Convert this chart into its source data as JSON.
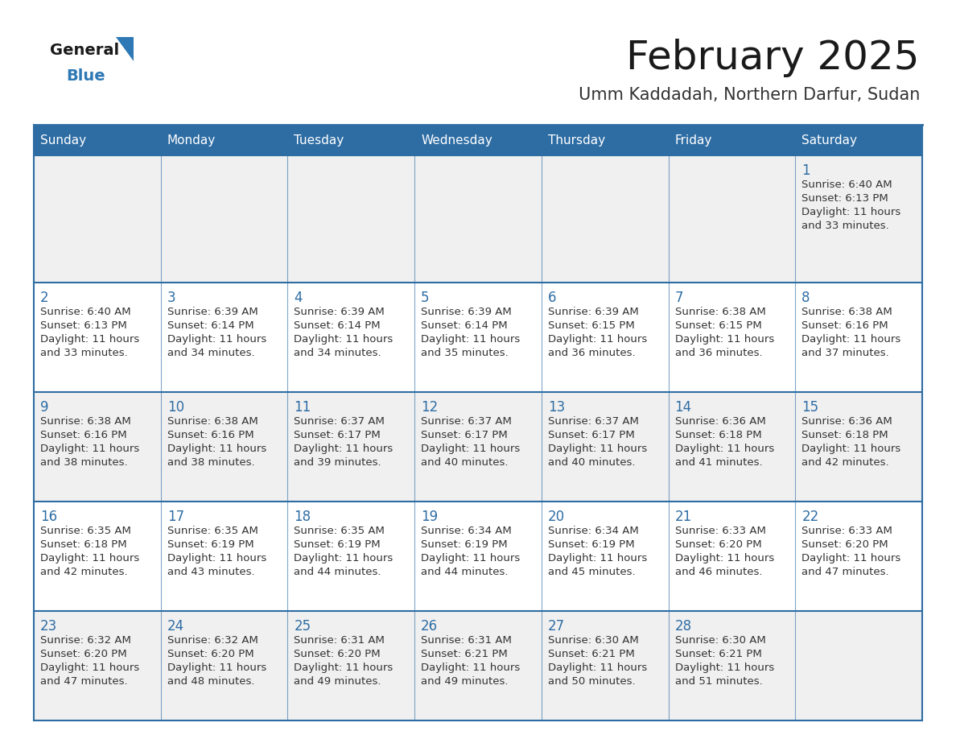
{
  "title": "February 2025",
  "subtitle": "Umm Kaddadah, Northern Darfur, Sudan",
  "days_of_week": [
    "Sunday",
    "Monday",
    "Tuesday",
    "Wednesday",
    "Thursday",
    "Friday",
    "Saturday"
  ],
  "header_bg": "#2E6DA4",
  "header_text": "#FFFFFF",
  "cell_bg_odd": "#F0F0F0",
  "cell_bg_even": "#FFFFFF",
  "cell_border": "#2E6DA4",
  "title_color": "#1a1a1a",
  "subtitle_color": "#333333",
  "day_num_color": "#2E6DA4",
  "cell_text_color": "#333333",
  "logo_general_color": "#1a1a1a",
  "logo_blue_color": "#2E79B5",
  "calendar_data": [
    [
      null,
      null,
      null,
      null,
      null,
      null,
      {
        "day": 1,
        "sunrise": "6:40 AM",
        "sunset": "6:13 PM",
        "daylight_hrs": 11,
        "daylight_min": "33 minutes."
      }
    ],
    [
      {
        "day": 2,
        "sunrise": "6:40 AM",
        "sunset": "6:13 PM",
        "daylight_hrs": 11,
        "daylight_min": "33 minutes."
      },
      {
        "day": 3,
        "sunrise": "6:39 AM",
        "sunset": "6:14 PM",
        "daylight_hrs": 11,
        "daylight_min": "34 minutes."
      },
      {
        "day": 4,
        "sunrise": "6:39 AM",
        "sunset": "6:14 PM",
        "daylight_hrs": 11,
        "daylight_min": "34 minutes."
      },
      {
        "day": 5,
        "sunrise": "6:39 AM",
        "sunset": "6:14 PM",
        "daylight_hrs": 11,
        "daylight_min": "35 minutes."
      },
      {
        "day": 6,
        "sunrise": "6:39 AM",
        "sunset": "6:15 PM",
        "daylight_hrs": 11,
        "daylight_min": "36 minutes."
      },
      {
        "day": 7,
        "sunrise": "6:38 AM",
        "sunset": "6:15 PM",
        "daylight_hrs": 11,
        "daylight_min": "36 minutes."
      },
      {
        "day": 8,
        "sunrise": "6:38 AM",
        "sunset": "6:16 PM",
        "daylight_hrs": 11,
        "daylight_min": "37 minutes."
      }
    ],
    [
      {
        "day": 9,
        "sunrise": "6:38 AM",
        "sunset": "6:16 PM",
        "daylight_hrs": 11,
        "daylight_min": "38 minutes."
      },
      {
        "day": 10,
        "sunrise": "6:38 AM",
        "sunset": "6:16 PM",
        "daylight_hrs": 11,
        "daylight_min": "38 minutes."
      },
      {
        "day": 11,
        "sunrise": "6:37 AM",
        "sunset": "6:17 PM",
        "daylight_hrs": 11,
        "daylight_min": "39 minutes."
      },
      {
        "day": 12,
        "sunrise": "6:37 AM",
        "sunset": "6:17 PM",
        "daylight_hrs": 11,
        "daylight_min": "40 minutes."
      },
      {
        "day": 13,
        "sunrise": "6:37 AM",
        "sunset": "6:17 PM",
        "daylight_hrs": 11,
        "daylight_min": "40 minutes."
      },
      {
        "day": 14,
        "sunrise": "6:36 AM",
        "sunset": "6:18 PM",
        "daylight_hrs": 11,
        "daylight_min": "41 minutes."
      },
      {
        "day": 15,
        "sunrise": "6:36 AM",
        "sunset": "6:18 PM",
        "daylight_hrs": 11,
        "daylight_min": "42 minutes."
      }
    ],
    [
      {
        "day": 16,
        "sunrise": "6:35 AM",
        "sunset": "6:18 PM",
        "daylight_hrs": 11,
        "daylight_min": "42 minutes."
      },
      {
        "day": 17,
        "sunrise": "6:35 AM",
        "sunset": "6:19 PM",
        "daylight_hrs": 11,
        "daylight_min": "43 minutes."
      },
      {
        "day": 18,
        "sunrise": "6:35 AM",
        "sunset": "6:19 PM",
        "daylight_hrs": 11,
        "daylight_min": "44 minutes."
      },
      {
        "day": 19,
        "sunrise": "6:34 AM",
        "sunset": "6:19 PM",
        "daylight_hrs": 11,
        "daylight_min": "44 minutes."
      },
      {
        "day": 20,
        "sunrise": "6:34 AM",
        "sunset": "6:19 PM",
        "daylight_hrs": 11,
        "daylight_min": "45 minutes."
      },
      {
        "day": 21,
        "sunrise": "6:33 AM",
        "sunset": "6:20 PM",
        "daylight_hrs": 11,
        "daylight_min": "46 minutes."
      },
      {
        "day": 22,
        "sunrise": "6:33 AM",
        "sunset": "6:20 PM",
        "daylight_hrs": 11,
        "daylight_min": "47 minutes."
      }
    ],
    [
      {
        "day": 23,
        "sunrise": "6:32 AM",
        "sunset": "6:20 PM",
        "daylight_hrs": 11,
        "daylight_min": "47 minutes."
      },
      {
        "day": 24,
        "sunrise": "6:32 AM",
        "sunset": "6:20 PM",
        "daylight_hrs": 11,
        "daylight_min": "48 minutes."
      },
      {
        "day": 25,
        "sunrise": "6:31 AM",
        "sunset": "6:20 PM",
        "daylight_hrs": 11,
        "daylight_min": "49 minutes."
      },
      {
        "day": 26,
        "sunrise": "6:31 AM",
        "sunset": "6:21 PM",
        "daylight_hrs": 11,
        "daylight_min": "49 minutes."
      },
      {
        "day": 27,
        "sunrise": "6:30 AM",
        "sunset": "6:21 PM",
        "daylight_hrs": 11,
        "daylight_min": "50 minutes."
      },
      {
        "day": 28,
        "sunrise": "6:30 AM",
        "sunset": "6:21 PM",
        "daylight_hrs": 11,
        "daylight_min": "51 minutes."
      },
      null
    ]
  ]
}
